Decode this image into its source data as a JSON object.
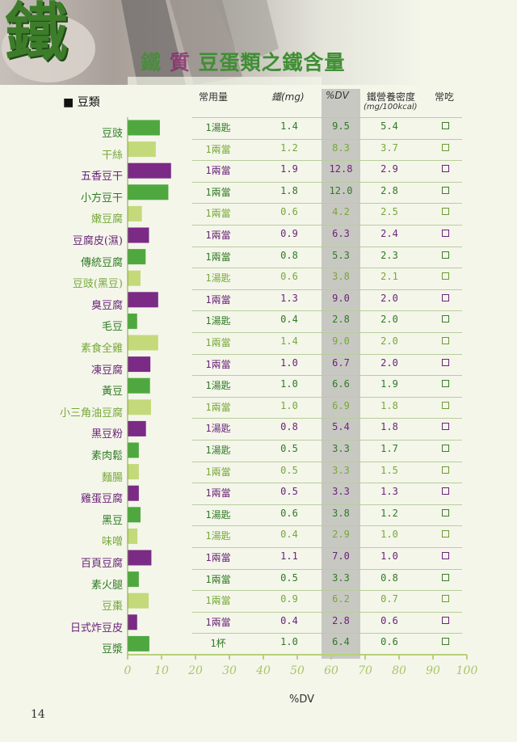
{
  "page_title": "豆蛋類之鐵含量",
  "big_char": "鐵",
  "title_obscured_chars": [
    "鐵",
    "質"
  ],
  "section_title": "豆類",
  "section_bullet": "■",
  "columns": {
    "amount": "常用量",
    "iron": "鐵(mg)",
    "dv": "%DV",
    "density": "鐵營養密度",
    "density_unit": "(mg/100kcal)",
    "eat": "常吃"
  },
  "x_axis_title": "%DV",
  "page_number": "14",
  "colors": {
    "green": "#4fa83f",
    "light_green": "#c4d97a",
    "purple": "#7b2a86",
    "grid": "#b9cd9c",
    "axis": "#b8d07a",
    "dv_band": "#c8c8c2"
  },
  "chart_data": {
    "type": "bar",
    "orientation": "horizontal",
    "categories": [
      "豆豉",
      "干絲",
      "五香豆干",
      "小方豆干",
      "嫩豆腐",
      "豆腐皮(濕)",
      "傳統豆腐",
      "豆豉(黑豆)",
      "臭豆腐",
      "毛豆",
      "素食全雞",
      "凍豆腐",
      "黃豆",
      "小三角油豆腐",
      "黑豆粉",
      "素肉鬆",
      "麵腸",
      "雞蛋豆腐",
      "黑豆",
      "味噌",
      "百頁豆腐",
      "素火腿",
      "豆棗",
      "日式炸豆皮",
      "豆漿"
    ],
    "values": [
      9.5,
      8.3,
      12.8,
      12.0,
      4.2,
      6.3,
      5.3,
      3.8,
      9.0,
      2.8,
      9.0,
      6.7,
      6.6,
      6.9,
      5.4,
      3.3,
      3.3,
      3.3,
      3.8,
      2.9,
      7.0,
      3.3,
      6.2,
      2.8,
      6.4
    ],
    "bar_colors": [
      "green",
      "light_green",
      "purple",
      "green",
      "light_green",
      "purple",
      "green",
      "light_green",
      "purple",
      "green",
      "light_green",
      "purple",
      "green",
      "light_green",
      "purple",
      "green",
      "light_green",
      "purple",
      "green",
      "light_green",
      "purple",
      "green",
      "light_green",
      "purple",
      "green"
    ],
    "xlabel": "%DV",
    "xlim": [
      0,
      100
    ],
    "xticks": [
      "0",
      "10",
      "20",
      "30",
      "40",
      "50",
      "60",
      "70",
      "80",
      "90",
      "100"
    ]
  },
  "rows": [
    {
      "name": "豆豉",
      "amount": "1湯匙",
      "iron": "1.4",
      "dv": "9.5",
      "density": "5.4",
      "color": "green"
    },
    {
      "name": "干絲",
      "amount": "1兩當",
      "iron": "1.2",
      "dv": "8.3",
      "density": "3.7",
      "color": "light_green"
    },
    {
      "name": "五香豆干",
      "amount": "1兩當",
      "iron": "1.9",
      "dv": "12.8",
      "density": "2.9",
      "color": "purple"
    },
    {
      "name": "小方豆干",
      "amount": "1兩當",
      "iron": "1.8",
      "dv": "12.0",
      "density": "2.8",
      "color": "green"
    },
    {
      "name": "嫩豆腐",
      "amount": "1兩當",
      "iron": "0.6",
      "dv": "4.2",
      "density": "2.5",
      "color": "light_green"
    },
    {
      "name": "豆腐皮(濕)",
      "amount": "1兩當",
      "iron": "0.9",
      "dv": "6.3",
      "density": "2.4",
      "color": "purple"
    },
    {
      "name": "傳統豆腐",
      "amount": "1兩當",
      "iron": "0.8",
      "dv": "5.3",
      "density": "2.3",
      "color": "green"
    },
    {
      "name": "豆豉(黑豆)",
      "amount": "1湯匙",
      "iron": "0.6",
      "dv": "3.8",
      "density": "2.1",
      "color": "light_green"
    },
    {
      "name": "臭豆腐",
      "amount": "1兩當",
      "iron": "1.3",
      "dv": "9.0",
      "density": "2.0",
      "color": "purple"
    },
    {
      "name": "毛豆",
      "amount": "1湯匙",
      "iron": "0.4",
      "dv": "2.8",
      "density": "2.0",
      "color": "green"
    },
    {
      "name": "素食全雞",
      "amount": "1兩當",
      "iron": "1.4",
      "dv": "9.0",
      "density": "2.0",
      "color": "light_green"
    },
    {
      "name": "凍豆腐",
      "amount": "1兩當",
      "iron": "1.0",
      "dv": "6.7",
      "density": "2.0",
      "color": "purple"
    },
    {
      "name": "黃豆",
      "amount": "1湯匙",
      "iron": "1.0",
      "dv": "6.6",
      "density": "1.9",
      "color": "green"
    },
    {
      "name": "小三角油豆腐",
      "amount": "1兩當",
      "iron": "1.0",
      "dv": "6.9",
      "density": "1.8",
      "color": "light_green"
    },
    {
      "name": "黑豆粉",
      "amount": "1湯匙",
      "iron": "0.8",
      "dv": "5.4",
      "density": "1.8",
      "color": "purple"
    },
    {
      "name": "素肉鬆",
      "amount": "1湯匙",
      "iron": "0.5",
      "dv": "3.3",
      "density": "1.7",
      "color": "green"
    },
    {
      "name": "麵腸",
      "amount": "1兩當",
      "iron": "0.5",
      "dv": "3.3",
      "density": "1.5",
      "color": "light_green"
    },
    {
      "name": "雞蛋豆腐",
      "amount": "1兩當",
      "iron": "0.5",
      "dv": "3.3",
      "density": "1.3",
      "color": "purple"
    },
    {
      "name": "黑豆",
      "amount": "1湯匙",
      "iron": "0.6",
      "dv": "3.8",
      "density": "1.2",
      "color": "green"
    },
    {
      "name": "味噌",
      "amount": "1湯匙",
      "iron": "0.4",
      "dv": "2.9",
      "density": "1.0",
      "color": "light_green"
    },
    {
      "name": "百頁豆腐",
      "amount": "1兩當",
      "iron": "1.1",
      "dv": "7.0",
      "density": "1.0",
      "color": "purple"
    },
    {
      "name": "素火腿",
      "amount": "1兩當",
      "iron": "0.5",
      "dv": "3.3",
      "density": "0.8",
      "color": "green"
    },
    {
      "name": "豆棗",
      "amount": "1兩當",
      "iron": "0.9",
      "dv": "6.2",
      "density": "0.7",
      "color": "light_green"
    },
    {
      "name": "日式炸豆皮",
      "amount": "1兩當",
      "iron": "0.4",
      "dv": "2.8",
      "density": "0.6",
      "color": "purple"
    },
    {
      "name": "豆漿",
      "amount": "1杯",
      "iron": "1.0",
      "dv": "6.4",
      "density": "0.6",
      "color": "green"
    }
  ]
}
